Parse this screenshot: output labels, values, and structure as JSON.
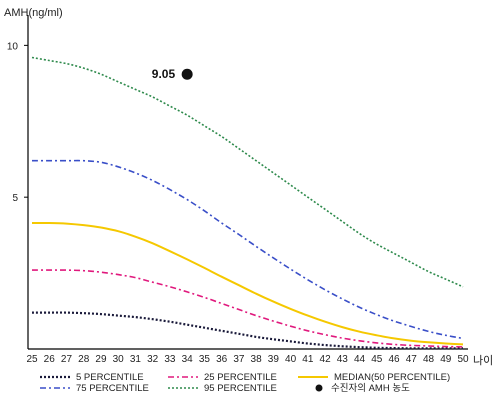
{
  "chart_data": {
    "type": "line",
    "ylabel": "AMH(ng/ml)",
    "xlabel": "나이",
    "xlim": [
      25,
      50
    ],
    "ylim": [
      0,
      11
    ],
    "x_ticks": [
      "25",
      "26",
      "27",
      "28",
      "29",
      "30",
      "31",
      "32",
      "33",
      "34",
      "35",
      "36",
      "37",
      "38",
      "39",
      "40",
      "41",
      "42",
      "43",
      "44",
      "45",
      "46",
      "47",
      "48",
      "49",
      "50"
    ],
    "y_ticks": [
      "10",
      "5"
    ],
    "grid": false,
    "legend_position": "bottom",
    "x": [
      25,
      26,
      27,
      28,
      29,
      30,
      31,
      32,
      33,
      34,
      35,
      36,
      37,
      38,
      39,
      40,
      41,
      42,
      43,
      44,
      45,
      46,
      47,
      48,
      49,
      50
    ],
    "series": [
      {
        "name": "5 PERCENTILE",
        "color": "#1a1a3a",
        "dash": "2 2",
        "width": 2.2,
        "values": [
          1.2,
          1.2,
          1.2,
          1.18,
          1.15,
          1.1,
          1.05,
          0.98,
          0.9,
          0.8,
          0.7,
          0.6,
          0.5,
          0.4,
          0.32,
          0.25,
          0.18,
          0.13,
          0.09,
          0.06,
          0.04,
          0.03,
          0.02,
          0.02,
          0.02,
          0.02
        ]
      },
      {
        "name": "25 PERCENTILE",
        "color": "#e0197d",
        "dash": "6 3 2 3",
        "width": 1.6,
        "values": [
          2.6,
          2.6,
          2.6,
          2.58,
          2.53,
          2.45,
          2.35,
          2.2,
          2.05,
          1.88,
          1.7,
          1.5,
          1.3,
          1.1,
          0.92,
          0.75,
          0.6,
          0.47,
          0.36,
          0.27,
          0.2,
          0.15,
          0.12,
          0.1,
          0.08,
          0.07
        ]
      },
      {
        "name": "MEDIAN(50 PERCENTILE)",
        "color": "#f5c800",
        "dash": "",
        "width": 2,
        "values": [
          4.15,
          4.15,
          4.13,
          4.08,
          4.0,
          3.88,
          3.7,
          3.48,
          3.22,
          2.95,
          2.67,
          2.38,
          2.1,
          1.82,
          1.56,
          1.32,
          1.1,
          0.9,
          0.72,
          0.57,
          0.45,
          0.35,
          0.27,
          0.22,
          0.18,
          0.15
        ]
      },
      {
        "name": "75 PERCENTILE",
        "color": "#3a4fc8",
        "dash": "6 3 2 3",
        "width": 1.6,
        "values": [
          6.2,
          6.2,
          6.2,
          6.2,
          6.15,
          6.0,
          5.8,
          5.55,
          5.25,
          4.92,
          4.55,
          4.15,
          3.77,
          3.38,
          3.0,
          2.63,
          2.28,
          1.95,
          1.65,
          1.37,
          1.13,
          0.92,
          0.74,
          0.58,
          0.45,
          0.35
        ]
      },
      {
        "name": "95 PERCENTILE",
        "color": "#2e8a4c",
        "dash": "2 2",
        "width": 1.6,
        "values": [
          9.6,
          9.5,
          9.4,
          9.25,
          9.05,
          8.8,
          8.55,
          8.3,
          8.0,
          7.7,
          7.35,
          7.0,
          6.6,
          6.2,
          5.8,
          5.4,
          5.0,
          4.6,
          4.2,
          3.8,
          3.45,
          3.15,
          2.85,
          2.55,
          2.3,
          2.05
        ]
      }
    ],
    "marker": {
      "name": "수진자의 AMH 농도",
      "x": 34,
      "y": 9.05,
      "label": "9.05",
      "color": "#111111"
    }
  }
}
